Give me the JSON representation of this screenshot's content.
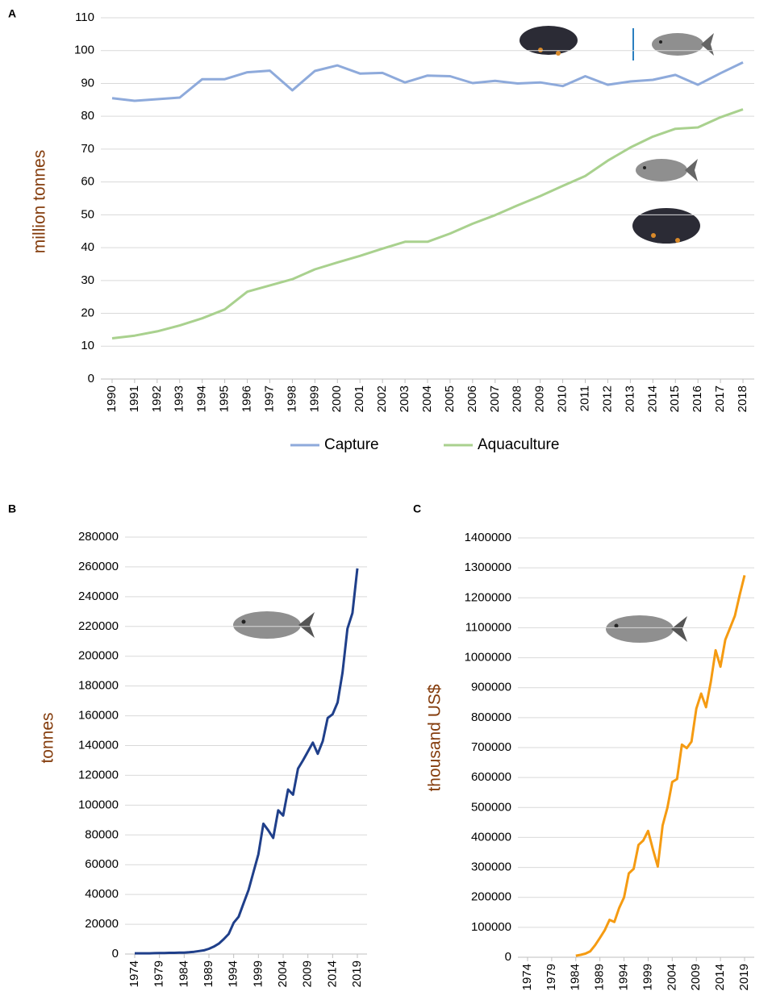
{
  "chart_data": [
    {
      "type": "line",
      "panel": "A",
      "ylabel": "million tonnes",
      "x": [
        1990,
        1991,
        1992,
        1993,
        1994,
        1995,
        1996,
        1997,
        1998,
        1999,
        2000,
        2001,
        2002,
        2003,
        2004,
        2005,
        2006,
        2007,
        2008,
        2009,
        2010,
        2011,
        2012,
        2013,
        2014,
        2015,
        2016,
        2017,
        2018
      ],
      "series": [
        {
          "name": "Capture",
          "color": "#8eaadb",
          "values": [
            85.5,
            84.7,
            85.2,
            85.7,
            91.3,
            91.3,
            93.4,
            93.9,
            87.9,
            93.8,
            95.5,
            93.0,
            93.2,
            90.3,
            92.4,
            92.2,
            90.1,
            90.8,
            90.0,
            90.3,
            89.2,
            92.2,
            89.6,
            90.6,
            91.1,
            92.6,
            89.6,
            93.1,
            96.4
          ]
        },
        {
          "name": "Aquaculture",
          "color": "#a9d18e",
          "values": [
            12.4,
            13.2,
            14.5,
            16.3,
            18.5,
            21.2,
            26.6,
            28.5,
            30.4,
            33.4,
            35.5,
            37.5,
            39.7,
            41.8,
            41.8,
            44.3,
            47.3,
            49.9,
            52.9,
            55.7,
            58.8,
            61.8,
            66.5,
            70.5,
            73.8,
            76.2,
            76.6,
            79.7,
            82.1
          ]
        }
      ],
      "ylim": [
        0,
        110
      ],
      "yticks": [
        0,
        10,
        20,
        30,
        40,
        50,
        60,
        70,
        80,
        90,
        100,
        110
      ],
      "grid": true,
      "legend": "bottom"
    },
    {
      "type": "line",
      "panel": "B",
      "ylabel": "tonnes",
      "color": "#1f3f8a",
      "x": [
        1974,
        1975,
        1976,
        1977,
        1978,
        1979,
        1980,
        1981,
        1982,
        1983,
        1984,
        1985,
        1986,
        1987,
        1988,
        1989,
        1990,
        1991,
        1992,
        1993,
        1994,
        1995,
        1996,
        1997,
        1998,
        1999,
        2000,
        2001,
        2002,
        2003,
        2004,
        2005,
        2006,
        2007,
        2008,
        2009,
        2010,
        2011,
        2012,
        2013,
        2014,
        2015,
        2016,
        2017,
        2018,
        2019
      ],
      "values": [
        500,
        500,
        500,
        500,
        600,
        700,
        700,
        800,
        800,
        900,
        1000,
        1200,
        1500,
        2000,
        2500,
        3500,
        5000,
        7000,
        10000,
        13500,
        21000,
        25000,
        34000,
        43000,
        55000,
        67000,
        87500,
        83000,
        78000,
        96500,
        93000,
        110500,
        107000,
        124500,
        130000,
        136000,
        142000,
        134500,
        143000,
        158500,
        161000,
        169000,
        189000,
        218500,
        229000,
        259000
      ],
      "xlim": [
        1974,
        2019
      ],
      "xticks": [
        1974,
        1979,
        1984,
        1989,
        1994,
        1999,
        2004,
        2009,
        2014,
        2019
      ],
      "ylim": [
        0,
        280000
      ],
      "yticks": [
        0,
        20000,
        40000,
        60000,
        80000,
        100000,
        120000,
        140000,
        160000,
        180000,
        200000,
        220000,
        240000,
        260000,
        280000
      ],
      "grid": true
    },
    {
      "type": "line",
      "panel": "C",
      "ylabel": "thousand US$",
      "color": "#f59b12",
      "x": [
        1974,
        1975,
        1976,
        1977,
        1978,
        1979,
        1980,
        1981,
        1982,
        1983,
        1984,
        1985,
        1986,
        1987,
        1988,
        1989,
        1990,
        1991,
        1992,
        1993,
        1994,
        1995,
        1996,
        1997,
        1998,
        1999,
        2000,
        2001,
        2002,
        2003,
        2004,
        2005,
        2006,
        2007,
        2008,
        2009,
        2010,
        2011,
        2012,
        2013,
        2014,
        2015,
        2016,
        2017,
        2018,
        2019
      ],
      "values": [
        null,
        null,
        null,
        null,
        null,
        null,
        null,
        null,
        null,
        null,
        5000,
        8000,
        12000,
        20000,
        40000,
        65000,
        90000,
        125000,
        118000,
        165000,
        200000,
        280000,
        295000,
        375000,
        390000,
        422000,
        360000,
        303000,
        440000,
        500000,
        585000,
        595000,
        710000,
        698000,
        720000,
        830000,
        880000,
        835000,
        920000,
        1025000,
        970000,
        1060000,
        1100000,
        1140000,
        1210000,
        1275000
      ],
      "xlim": [
        1974,
        2019
      ],
      "xticks": [
        1974,
        1979,
        1984,
        1989,
        1994,
        1999,
        2004,
        2009,
        2014,
        2019
      ],
      "ylim": [
        0,
        1400000
      ],
      "yticks": [
        0,
        100000,
        200000,
        300000,
        400000,
        500000,
        600000,
        700000,
        800000,
        900000,
        1000000,
        1100000,
        1200000,
        1300000,
        1400000
      ],
      "grid": true
    }
  ]
}
